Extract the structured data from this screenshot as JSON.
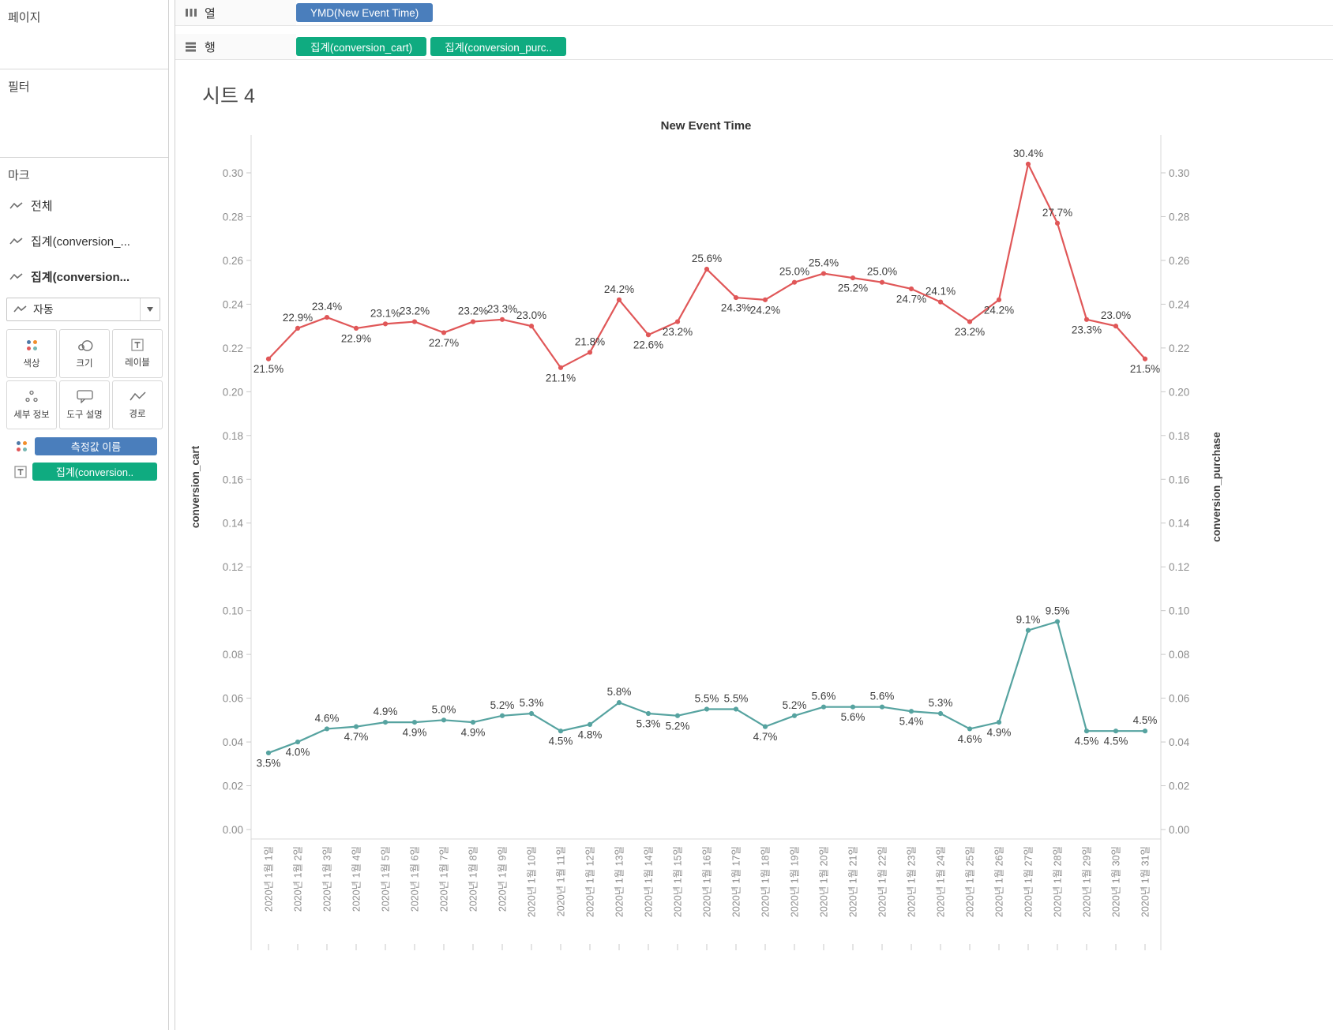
{
  "colors": {
    "pill_blue": "#4a7ebc",
    "pill_green": "#0fab80",
    "cart_line": "#e05758",
    "purchase_line": "#56a3a0"
  },
  "sidebar": {
    "pages_label": "페이지",
    "filters_label": "필터",
    "marks_label": "마크",
    "marks_items": [
      {
        "label": "전체",
        "bold": false
      },
      {
        "label": "집계(conversion_...",
        "bold": false
      },
      {
        "label": "집계(conversion...",
        "bold": true
      }
    ],
    "mark_type_dropdown": "자동",
    "mark_buttons": [
      {
        "label": "색상",
        "name": "color-button",
        "icon": "color-dots-icon"
      },
      {
        "label": "크기",
        "name": "size-button",
        "icon": "size-icon"
      },
      {
        "label": "레이블",
        "name": "label-button",
        "icon": "label-text-icon"
      },
      {
        "label": "세부 정보",
        "name": "detail-button",
        "icon": "detail-dots-icon"
      },
      {
        "label": "도구 설명",
        "name": "tooltip-button",
        "icon": "tooltip-bubble-icon"
      },
      {
        "label": "경로",
        "name": "path-button",
        "icon": "path-line-icon"
      }
    ],
    "mark_pills": [
      {
        "label": "측정값 이름",
        "color": "blue",
        "icon": "color-dots-icon"
      },
      {
        "label": "집계(conversion..",
        "color": "green",
        "icon": "label-text-icon"
      }
    ]
  },
  "shelves": {
    "columns_label": "열",
    "rows_label": "행",
    "columns_pills": [
      {
        "label": "YMD(New Event Time)",
        "color": "blue"
      }
    ],
    "rows_pills": [
      {
        "label": "집계(conversion_cart)",
        "color": "green"
      },
      {
        "label": "집계(conversion_purc..",
        "color": "green"
      }
    ]
  },
  "sheet": {
    "title": "시트 4"
  },
  "chart_data": {
    "type": "line",
    "title": "New Event Time",
    "left_axis_title": "conversion_cart",
    "right_axis_title": "conversion_purchase",
    "ylim": [
      0,
      0.3
    ],
    "y_ticks": [
      0,
      0.02,
      0.04,
      0.06,
      0.08,
      0.1,
      0.12,
      0.14,
      0.16,
      0.18,
      0.2,
      0.22,
      0.24,
      0.26,
      0.28,
      0.3
    ],
    "x": [
      "2020년 1월 1일",
      "2020년 1월 2일",
      "2020년 1월 3일",
      "2020년 1월 4일",
      "2020년 1월 5일",
      "2020년 1월 6일",
      "2020년 1월 7일",
      "2020년 1월 8일",
      "2020년 1월 9일",
      "2020년 1월 10일",
      "2020년 1월 11일",
      "2020년 1월 12일",
      "2020년 1월 13일",
      "2020년 1월 14일",
      "2020년 1월 15일",
      "2020년 1월 16일",
      "2020년 1월 17일",
      "2020년 1월 18일",
      "2020년 1월 19일",
      "2020년 1월 20일",
      "2020년 1월 21일",
      "2020년 1월 22일",
      "2020년 1월 23일",
      "2020년 1월 24일",
      "2020년 1월 25일",
      "2020년 1월 26일",
      "2020년 1월 27일",
      "2020년 1월 28일",
      "2020년 1월 29일",
      "2020년 1월 30일",
      "2020년 1월 31일"
    ],
    "series": [
      {
        "name": "집계(conversion_cart)",
        "color": "#e05758",
        "values_pct": [
          21.5,
          22.9,
          23.4,
          22.9,
          23.1,
          23.2,
          22.7,
          23.2,
          23.3,
          23.0,
          21.1,
          21.8,
          24.2,
          22.6,
          23.2,
          25.6,
          24.3,
          24.2,
          25.0,
          25.4,
          25.2,
          25.0,
          24.7,
          24.1,
          23.2,
          24.2,
          30.4,
          27.7,
          23.3,
          23.0,
          21.5
        ],
        "label_side": [
          "b",
          "a",
          "a",
          "b",
          "a",
          "a",
          "b",
          "a",
          "a",
          "a",
          "b",
          "a",
          "a",
          "b",
          "b",
          "a",
          "b",
          "b",
          "a",
          "a",
          "b",
          "a",
          "b",
          "a",
          "b",
          "b",
          "a",
          "a",
          "b",
          "a",
          "b"
        ]
      },
      {
        "name": "집계(conversion_purchase)",
        "color": "#56a3a0",
        "values_pct": [
          3.5,
          4.0,
          4.6,
          4.7,
          4.9,
          4.9,
          5.0,
          4.9,
          5.2,
          5.3,
          4.5,
          4.8,
          5.8,
          5.3,
          5.2,
          5.5,
          5.5,
          4.7,
          5.2,
          5.6,
          5.6,
          5.6,
          5.4,
          5.3,
          4.6,
          4.9,
          9.1,
          9.5,
          4.5,
          4.5,
          4.5
        ],
        "label_side": [
          "b",
          "b",
          "a",
          "b",
          "a",
          "b",
          "a",
          "b",
          "a",
          "a",
          "b",
          "b",
          "a",
          "b",
          "b",
          "a",
          "a",
          "b",
          "a",
          "a",
          "b",
          "a",
          "b",
          "a",
          "b",
          "b",
          "a",
          "a",
          "b",
          "b",
          "a"
        ]
      }
    ],
    "legend_position": "none",
    "grid": false
  }
}
